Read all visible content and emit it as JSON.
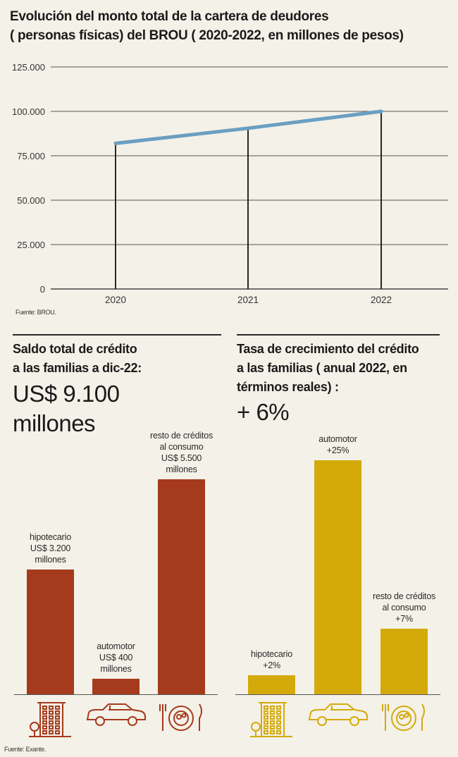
{
  "title": {
    "line1": "Evolución del monto total de la cartera de deudores",
    "line2": "( personas físicas) del BROU ( 2020-2022, en millones de pesos)"
  },
  "line_chart_source": "Fuente: BROU.",
  "footer_source": "Fuente: Exante.",
  "chart_data": [
    {
      "type": "line",
      "x": [
        "2020",
        "2021",
        "2022"
      ],
      "series": [
        {
          "values": [
            82000,
            90500,
            100000
          ],
          "color": "#6a9fc2"
        }
      ],
      "y_ticks": [
        "0",
        "25.000",
        "50.000",
        "75.000",
        "100.000",
        "125.000"
      ],
      "y_tick_values": [
        0,
        25000,
        50000,
        75000,
        100000,
        125000
      ],
      "ylim": [
        0,
        125000
      ],
      "grid": true
    },
    {
      "type": "bar",
      "heading": [
        "Saldo total de crédito",
        "a las familias a dic-22:"
      ],
      "headline": [
        "US$ 9.100",
        "millones"
      ],
      "categories": [
        "hipotecario",
        "automotor",
        "resto de créditos al consumo"
      ],
      "values": [
        3200,
        400,
        5500
      ],
      "unit": "US$ millones",
      "labels": [
        [
          "hipotecario",
          "US$ 3.200",
          "millones"
        ],
        [
          "automotor",
          "US$ 400",
          "millones"
        ],
        [
          "resto de créditos",
          "al consumo",
          "US$ 5.500",
          "millones"
        ]
      ],
      "color": "#a63a1c",
      "icons": [
        "building-icon",
        "car-icon",
        "plate-icon"
      ]
    },
    {
      "type": "bar",
      "heading": [
        "Tasa de crecimiento del crédito",
        "a las familias ( anual 2022, en",
        "términos reales) :"
      ],
      "headline": [
        "+ 6%"
      ],
      "categories": [
        "hipotecario",
        "automotor",
        "resto de créditos al consumo"
      ],
      "values": [
        2,
        25,
        7
      ],
      "unit": "%",
      "labels": [
        [
          "hipotecario",
          "+2%"
        ],
        [
          "automotor",
          "+25%"
        ],
        [
          "resto de créditos",
          "al consumo",
          "+7%"
        ]
      ],
      "color": "#d4aa0a",
      "icons": [
        "building-icon",
        "car-icon",
        "plate-icon"
      ]
    }
  ]
}
